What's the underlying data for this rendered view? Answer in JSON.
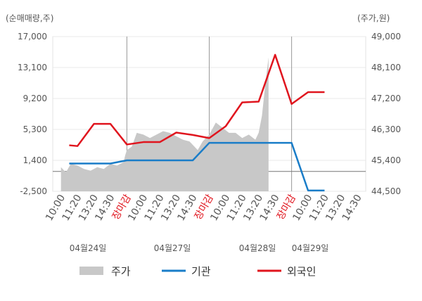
{
  "chart_data": {
    "type": "line",
    "left_axis_unit": "(순매매량,주)",
    "right_axis_unit": "(주가,원)",
    "left_axis": {
      "ticks": [
        17000,
        13100,
        9200,
        5300,
        1400,
        -2500
      ],
      "tick_labels": [
        "17,000",
        "13,100",
        "9,200",
        "5,300",
        "1,400",
        "-2,500"
      ],
      "ylim": [
        -2500,
        17000
      ]
    },
    "right_axis": {
      "ticks": [
        49000,
        48100,
        47200,
        46300,
        45400,
        44500
      ],
      "tick_labels": [
        "49,000",
        "48,100",
        "47,200",
        "46,300",
        "45,400",
        "44,500"
      ],
      "ylim": [
        44500,
        49000
      ]
    },
    "x_tick_labels": [
      "10:00",
      "11:20",
      "13:20",
      "14:30",
      "장마감",
      "10:00",
      "11:20",
      "13:20",
      "14:30",
      "장마감",
      "10:00",
      "11:20",
      "13:20",
      "14:30",
      "장마감",
      "10:00",
      "11:20",
      "13:20",
      "14:30"
    ],
    "closing_label": "장마감",
    "date_labels": [
      "04월24일",
      "04월27일",
      "04월28일",
      "04월29일"
    ],
    "legend": [
      "주가",
      "기관",
      "외국인"
    ],
    "grid": true,
    "series": [
      {
        "name": "기관",
        "axis": "left",
        "color": "#1a7dc8",
        "x": [
          0.5,
          1,
          2,
          3,
          4,
          5,
          6,
          7,
          8,
          9,
          10,
          11,
          12,
          13,
          14,
          15,
          16
        ],
        "values": [
          1000,
          1000,
          1000,
          1000,
          1400,
          1400,
          1400,
          1400,
          1400,
          3600,
          3600,
          3600,
          3600,
          3600,
          3600,
          -2400,
          -2400
        ]
      },
      {
        "name": "외국인",
        "axis": "left",
        "color": "#e0151e",
        "x": [
          0.5,
          1,
          2,
          3,
          4,
          5,
          6,
          7,
          8,
          9,
          10,
          11,
          12,
          13,
          14,
          15,
          16
        ],
        "values": [
          3300,
          3200,
          6000,
          6000,
          3400,
          3700,
          3700,
          4900,
          4600,
          4200,
          5700,
          8700,
          8800,
          14700,
          8500,
          10000,
          10000
        ]
      },
      {
        "name": "주가",
        "axis": "right",
        "color": "#c8c8c8",
        "type": "area",
        "note_values_in_won": true,
        "x": [
          0,
          0.3,
          0.6,
          1,
          1.4,
          1.8,
          2.2,
          2.6,
          3,
          3.4,
          3.8,
          3.9,
          4.0,
          4.3,
          4.6,
          5,
          5.4,
          5.8,
          6.2,
          6.6,
          7,
          7.4,
          7.8,
          7.9,
          8.0,
          8.3,
          8.6,
          9,
          9.4,
          9.8,
          10.2,
          10.6,
          11,
          11.4,
          11.8,
          11.9,
          12.0,
          12.2,
          12.4,
          12.6
        ],
        "values": [
          45200,
          45050,
          45300,
          45250,
          45150,
          45100,
          45200,
          45150,
          45300,
          45250,
          45350,
          45550,
          45700,
          45800,
          46200,
          46150,
          46050,
          46150,
          46250,
          46200,
          46100,
          46000,
          45950,
          45900,
          45850,
          45700,
          45950,
          46150,
          46500,
          46350,
          46200,
          46200,
          46050,
          46150,
          46000,
          46100,
          46200,
          46700,
          47600,
          48400
        ]
      }
    ]
  }
}
